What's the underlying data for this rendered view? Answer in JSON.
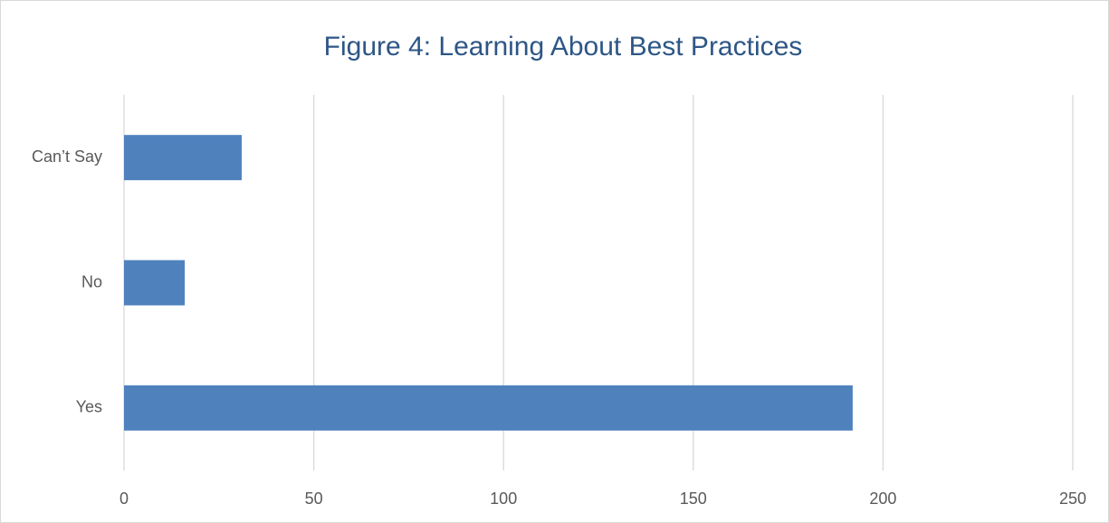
{
  "chart_data": {
    "type": "bar",
    "orientation": "horizontal",
    "title": "Figure 4: Learning About Best Practices",
    "categories": [
      "Can’t Say",
      "No",
      "Yes"
    ],
    "values": [
      31,
      16,
      192
    ],
    "color": "#4f81bd",
    "xlim": [
      0,
      250
    ],
    "xticks": [
      0,
      50,
      100,
      150,
      200,
      250
    ],
    "grid": true
  }
}
